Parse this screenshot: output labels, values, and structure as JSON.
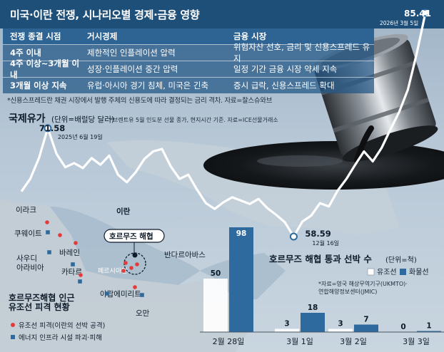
{
  "title": "미국·이란 전쟁, 시나리오별 경제·금융 영향",
  "table": {
    "headers": [
      "전쟁 종결 시점",
      "거시경제",
      "금융 시장"
    ],
    "rows": [
      [
        "4주 이내",
        "제한적인 인플레이션 압력",
        "위험자산 선호, 금리 및 신용스프레드 유지"
      ],
      [
        "4주 이상~3개월 이내",
        "성장·인플레이션 중간 압력",
        "일정 기간 금융 시장 약세 지속"
      ],
      [
        "3개월 이상 지속",
        "유럽·아시아 경기 침체, 미국은 긴축",
        "증시 급락, 신용스프레드 확대"
      ]
    ],
    "note": "*신용스프레드란 채권 시장에서 발행 주체의 신용도에 따라 결정되는 금리 격차. 자료=찰스슈와브"
  },
  "oil": {
    "title": "국제유가",
    "unit": "(단위=배럴당 달러)",
    "note": "*브렌트유 5월 인도분 선물 종가, 현지시간 기준. 자료=ICE선물거래소",
    "annotations": {
      "high": {
        "value": "71.58",
        "date": "2025년 6월 19일"
      },
      "low": {
        "value": "58.59",
        "date": "12월 16일"
      },
      "last": {
        "value": "85.41",
        "date": "2026년 3월 5일"
      }
    }
  },
  "map": {
    "labels": {
      "iraq": "이라크",
      "iran": "이란",
      "kuwait": "쿠웨이트",
      "bahrain": "바레인",
      "saudi": "사우디\n아라비아",
      "qatar": "카타르",
      "gulf": "페르시아만",
      "uae": "아랍에미리트",
      "bandar": "반다르아바스",
      "oman": "오만",
      "hormuz": "호르무즈 해협"
    },
    "title": "호르무즈해협 인근\n유조선 피격 현황",
    "legend": [
      {
        "label": "유조선 피격(이란의 선박 공격)",
        "color": "#e53a3a",
        "shape": "dot"
      },
      {
        "label": "에너지 인프라 시설 파괴·피해",
        "color": "#2e6a9e",
        "shape": "square"
      }
    ]
  },
  "chart_data": [
    {
      "type": "line",
      "title": "국제유가",
      "ylabel": "(단위=배럴당 달러)",
      "points": [
        {
          "x": "2025-06-19",
          "y": 71.58
        },
        {
          "x": "2025-12-16",
          "y": 58.59
        },
        {
          "x": "2026-03-05",
          "y": 85.41
        }
      ],
      "series": [
        {
          "values": [
            64.0,
            65.5,
            68.0,
            71.58,
            68.5,
            66.9,
            67.4,
            66.8,
            68.0,
            67.2,
            68.3,
            66.0,
            65.1,
            66.3,
            67.9,
            68.8,
            69.1,
            67.0,
            65.5,
            66.0,
            64.2,
            62.6,
            61.9,
            62.7,
            63.3,
            62.9,
            62.5,
            63.1,
            62.0,
            61.2,
            60.3,
            58.59,
            60.4,
            61.1,
            62.6,
            62.2,
            64.1,
            65.5,
            67.2,
            68.8,
            67.6,
            69.2,
            71.4,
            73.5,
            76.2,
            80.5,
            85.41
          ]
        }
      ]
    },
    {
      "type": "bar",
      "title": "호르무즈 해협 통과 선박 수",
      "ylabel": "(단위=척)",
      "note": "*자료=영국 해상무역기구(UKMTO)·연합해양정보센터(JMIC)",
      "categories": [
        "2월 28일",
        "3월 1일",
        "3월 2일",
        "3월 3일"
      ],
      "series": [
        {
          "name": "유조선",
          "values": [
            50,
            3,
            3,
            0
          ],
          "color": "#ffffff"
        },
        {
          "name": "화물선",
          "values": [
            98,
            18,
            7,
            1
          ],
          "color": "#2e6a9e"
        }
      ]
    }
  ]
}
